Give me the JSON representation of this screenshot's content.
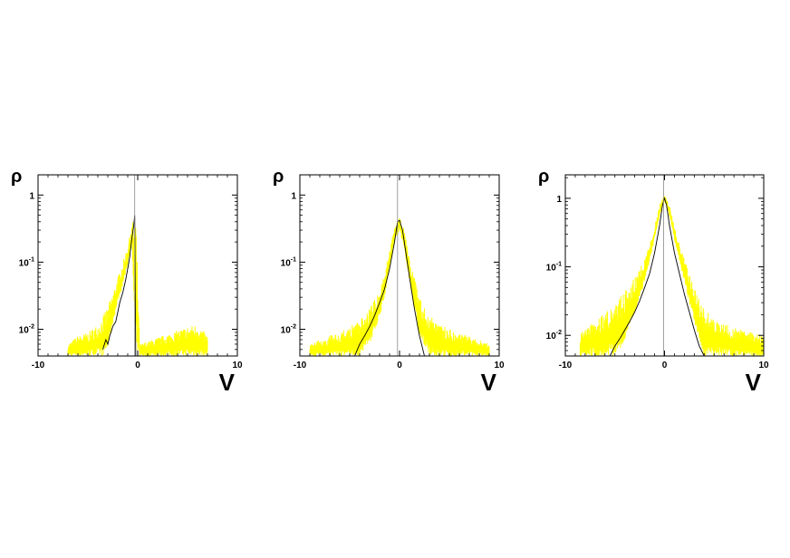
{
  "chart_data": [
    {
      "type": "line",
      "panel": "left",
      "xlabel": "V",
      "ylabel": "ρ",
      "yscale": "log",
      "xlim": [
        -10,
        10
      ],
      "ylim": [
        0.004,
        2.0
      ],
      "xticks": [
        -10,
        0,
        10
      ],
      "xtick_labels": [
        "-10",
        "0",
        "10"
      ],
      "yticks": [
        0.01,
        0.1,
        1
      ],
      "ytick_labels": [
        {
          "base": "10",
          "exp": "-2"
        },
        {
          "base": "10",
          "exp": "-1"
        },
        {
          "base": "1",
          "exp": ""
        }
      ],
      "grid": false,
      "series": [
        {
          "kind": "band",
          "color": "#ffff00",
          "x": [
            -7,
            -6,
            -5,
            -4,
            -3.5,
            -3,
            -2.5,
            -2,
            -1.5,
            -1,
            -0.6,
            -0.2,
            0.2,
            5,
            6,
            7
          ],
          "y_low": [
            0.004,
            0.004,
            0.004,
            0.004,
            0.004,
            0.005,
            0.012,
            0.025,
            0.045,
            0.09,
            0.2,
            0.004,
            0.004,
            0.004,
            0.004,
            0.004
          ],
          "y_high": [
            0.006,
            0.008,
            0.009,
            0.012,
            0.016,
            0.022,
            0.035,
            0.06,
            0.1,
            0.18,
            0.35,
            0.6,
            0.006,
            0.011,
            0.012,
            0.008
          ]
        },
        {
          "kind": "line",
          "color": "#000000",
          "x": [
            -3.5,
            -3.2,
            -3,
            -2.8,
            -2.5,
            -2.2,
            -2,
            -1.8,
            -1.5,
            -1.2,
            -1,
            -0.8,
            -0.6,
            -0.4,
            -0.3,
            -0.2
          ],
          "y": [
            0.005,
            0.007,
            0.006,
            0.008,
            0.011,
            0.013,
            0.018,
            0.025,
            0.035,
            0.055,
            0.08,
            0.12,
            0.22,
            0.35,
            0.5,
            0.004
          ]
        }
      ]
    },
    {
      "type": "line",
      "panel": "middle",
      "xlabel": "V",
      "ylabel": "ρ",
      "yscale": "log",
      "xlim": [
        -10,
        10
      ],
      "ylim": [
        0.004,
        2.0
      ],
      "xticks": [
        -10,
        0,
        10
      ],
      "xtick_labels": [
        "-10",
        "0",
        "10"
      ],
      "yticks": [
        0.01,
        0.1,
        1
      ],
      "ytick_labels": [
        {
          "base": "10",
          "exp": "-2"
        },
        {
          "base": "10",
          "exp": "-1"
        },
        {
          "base": "1",
          "exp": ""
        }
      ],
      "grid": false,
      "series": [
        {
          "kind": "band",
          "color": "#ffff00",
          "x": [
            -9,
            -8,
            -7,
            -6,
            -5,
            -4,
            -3,
            -2,
            -1.5,
            -1,
            -0.5,
            0,
            0.5,
            1,
            1.5,
            2,
            3,
            4,
            5,
            6,
            7,
            8,
            9
          ],
          "y_low": [
            0.004,
            0.004,
            0.004,
            0.004,
            0.004,
            0.004,
            0.006,
            0.015,
            0.03,
            0.08,
            0.2,
            0.3,
            0.15,
            0.05,
            0.02,
            0.008,
            0.004,
            0.004,
            0.004,
            0.004,
            0.004,
            0.004,
            0.004
          ],
          "y_high": [
            0.006,
            0.007,
            0.008,
            0.009,
            0.011,
            0.014,
            0.02,
            0.04,
            0.07,
            0.15,
            0.35,
            0.5,
            0.3,
            0.12,
            0.06,
            0.03,
            0.016,
            0.012,
            0.01,
            0.009,
            0.008,
            0.007,
            0.006
          ]
        },
        {
          "kind": "line",
          "color": "#000000",
          "x": [
            -4.5,
            -4,
            -3.5,
            -3,
            -2.5,
            -2,
            -1.5,
            -1,
            -0.5,
            -0.2,
            0,
            0.3,
            0.6,
            1,
            1.5,
            2,
            2.5
          ],
          "y": [
            0.004,
            0.006,
            0.008,
            0.011,
            0.016,
            0.025,
            0.04,
            0.08,
            0.2,
            0.4,
            0.42,
            0.3,
            0.15,
            0.06,
            0.02,
            0.008,
            0.004
          ]
        }
      ]
    },
    {
      "type": "line",
      "panel": "right",
      "xlabel": "V",
      "ylabel": "ρ",
      "yscale": "log",
      "xlim": [
        -10,
        10
      ],
      "ylim": [
        0.005,
        2.2
      ],
      "xticks": [
        -10,
        0,
        10
      ],
      "xtick_labels": [
        "-10",
        "0",
        "10"
      ],
      "yticks": [
        0.01,
        0.1,
        1
      ],
      "ytick_labels": [
        {
          "base": "10",
          "exp": "-2"
        },
        {
          "base": "10",
          "exp": "-1"
        },
        {
          "base": "1",
          "exp": ""
        }
      ],
      "grid": false,
      "series": [
        {
          "kind": "band",
          "color": "#ffff00",
          "x": [
            -8.5,
            -8,
            -7,
            -6,
            -5,
            -4,
            -3,
            -2,
            -1.5,
            -1,
            -0.5,
            0,
            0.5,
            1,
            1.5,
            2,
            3,
            4,
            5,
            6,
            7,
            8,
            9,
            10
          ],
          "y_low": [
            0.005,
            0.005,
            0.005,
            0.005,
            0.005,
            0.008,
            0.02,
            0.06,
            0.12,
            0.25,
            0.55,
            0.9,
            0.55,
            0.25,
            0.12,
            0.06,
            0.015,
            0.005,
            0.005,
            0.005,
            0.005,
            0.005,
            0.005,
            0.005
          ],
          "y_high": [
            0.011,
            0.013,
            0.016,
            0.022,
            0.03,
            0.045,
            0.07,
            0.13,
            0.22,
            0.4,
            0.8,
            1.15,
            0.8,
            0.4,
            0.22,
            0.13,
            0.05,
            0.025,
            0.018,
            0.015,
            0.013,
            0.012,
            0.011,
            0.01
          ]
        },
        {
          "kind": "line",
          "color": "#000000",
          "x": [
            -5.5,
            -5,
            -4.5,
            -4,
            -3.5,
            -3,
            -2.5,
            -2,
            -1.5,
            -1,
            -0.5,
            -0.2,
            0,
            0.2,
            0.5,
            1,
            1.5,
            2,
            2.5,
            3,
            3.5,
            4
          ],
          "y": [
            0.005,
            0.007,
            0.009,
            0.012,
            0.016,
            0.022,
            0.032,
            0.05,
            0.08,
            0.16,
            0.4,
            0.8,
            1.0,
            0.8,
            0.4,
            0.16,
            0.08,
            0.04,
            0.022,
            0.012,
            0.007,
            0.005
          ]
        }
      ]
    }
  ]
}
